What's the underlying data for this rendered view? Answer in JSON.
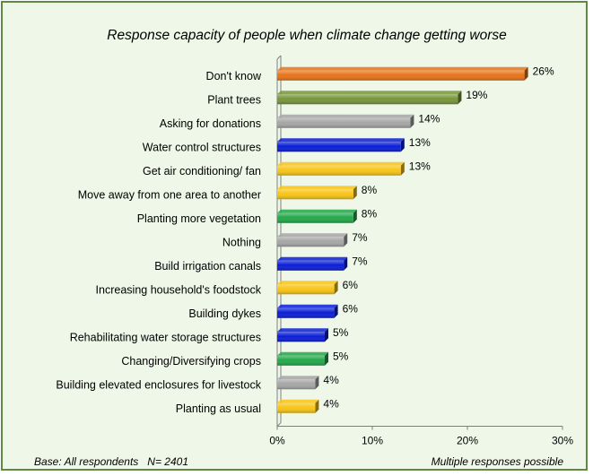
{
  "chart_data": {
    "type": "bar",
    "orientation": "horizontal",
    "title": "Response capacity of people when climate change getting worse",
    "categories": [
      "Don't know",
      "Plant trees",
      "Asking for donations",
      "Water control structures",
      "Get air conditioning/ fan",
      "Move away from one area to another",
      "Planting more vegetation",
      "Nothing",
      "Build irrigation canals",
      "Increasing household's foodstock",
      "Building dykes",
      "Rehabilitating water storage structures",
      "Changing/Diversifying crops",
      "Building elevated enclosures for livestock",
      "Planting as usual"
    ],
    "values": [
      26,
      19,
      14,
      13,
      13,
      8,
      8,
      7,
      7,
      6,
      6,
      5,
      5,
      4,
      4
    ],
    "value_labels": [
      "26%",
      "19%",
      "14%",
      "13%",
      "13%",
      "8%",
      "8%",
      "7%",
      "7%",
      "6%",
      "6%",
      "5%",
      "5%",
      "4%",
      "4%"
    ],
    "colors": [
      "#e8741a",
      "#78963a",
      "#a6a6a6",
      "#0a1ed8",
      "#f8c416",
      "#f8c416",
      "#22a84a",
      "#a6a6a6",
      "#0a1ed8",
      "#f8c416",
      "#0a1ed8",
      "#0a1ed8",
      "#22a84a",
      "#a6a6a6",
      "#f8c416"
    ],
    "xlim": [
      0,
      30
    ],
    "xticks": [
      0,
      10,
      20,
      30
    ],
    "xtick_labels": [
      "0%",
      "10%",
      "20%",
      "30%"
    ],
    "grid": false,
    "legend": false
  },
  "footer": {
    "base": "Base: All respondents   N= 2401",
    "note": "Multiple responses possible"
  }
}
